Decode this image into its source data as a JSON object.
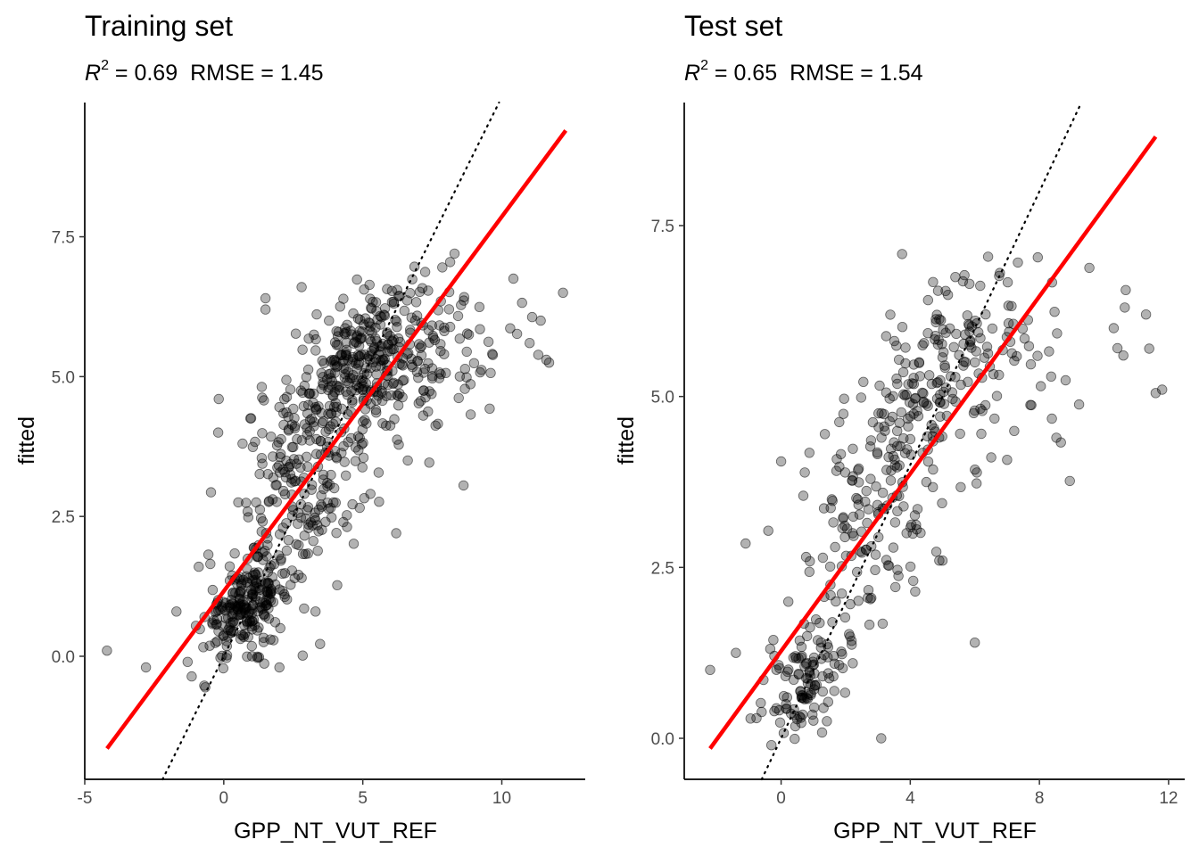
{
  "chart_data": [
    {
      "type": "scatter",
      "title": "Training set",
      "subtitle": {
        "r2_symbol": "R",
        "r2_exp": "2",
        "r2_value": " = 0.69",
        "rmse": "RMSE = 1.45"
      },
      "xlabel": "GPP_NT_VUT_REF",
      "ylabel": "fitted",
      "xlim": [
        -5,
        13
      ],
      "ylim": [
        -2.2,
        9.9
      ],
      "xticks": [
        -5,
        0,
        5,
        10
      ],
      "xtick_labels": [
        "-5",
        "0",
        "5",
        "10"
      ],
      "yticks": [
        0,
        2.5,
        5,
        7.5
      ],
      "ytick_labels": [
        "0.0",
        "2.5",
        "5.0",
        "7.5"
      ],
      "grid": false,
      "point_color": "#000000",
      "point_alpha": 0.3,
      "fit_line": {
        "color": "#ff0000",
        "x": [
          -4.2,
          12.3
        ],
        "y": [
          -1.65,
          9.4
        ]
      },
      "identity_line": {
        "style": "dotted",
        "color": "#000000"
      },
      "clusters": [
        {
          "cx": 0.8,
          "cy": 0.9,
          "sx": 0.75,
          "sy": 0.38,
          "n": 230
        },
        {
          "cx": 5.2,
          "cy": 5.4,
          "sx": 1.35,
          "sy": 0.55,
          "n": 260
        },
        {
          "cx": 2.8,
          "cy": 3.0,
          "sx": 1.3,
          "sy": 1.0,
          "n": 170
        },
        {
          "cx": 8.2,
          "cy": 5.3,
          "sx": 1.6,
          "sy": 0.7,
          "n": 80
        },
        {
          "cx": 4.0,
          "cy": 4.4,
          "sx": 1.4,
          "sy": 0.8,
          "n": 90
        }
      ],
      "points": [
        [
          -4.2,
          0.1
        ],
        [
          -2.8,
          -0.2
        ],
        [
          -1.7,
          0.8
        ],
        [
          -0.9,
          1.6
        ],
        [
          -1.3,
          -0.1
        ],
        [
          12.2,
          6.5
        ],
        [
          11.6,
          5.3
        ],
        [
          11.7,
          5.25
        ],
        [
          11.4,
          6.0
        ],
        [
          11.0,
          5.6
        ],
        [
          8.3,
          7.2
        ],
        [
          1.5,
          6.4
        ],
        [
          1.5,
          6.2
        ],
        [
          2.8,
          6.6
        ],
        [
          6.2,
          2.2
        ],
        [
          -0.2,
          4.0
        ],
        [
          2.0,
          -0.2
        ],
        [
          4.3,
          2.4
        ],
        [
          2.8,
          1.4
        ],
        [
          3.3,
          0.8
        ]
      ]
    },
    {
      "type": "scatter",
      "title": "Test set",
      "subtitle": {
        "r2_symbol": "R",
        "r2_exp": "2",
        "r2_value": " = 0.65",
        "rmse": "RMSE = 1.54"
      },
      "xlabel": "GPP_NT_VUT_REF",
      "ylabel": "fitted",
      "xlim": [
        -3,
        12.5
      ],
      "ylim": [
        -0.6,
        9.3
      ],
      "xticks": [
        0,
        4,
        8,
        12
      ],
      "xtick_labels": [
        "0",
        "4",
        "8",
        "12"
      ],
      "yticks": [
        0,
        2.5,
        5,
        7.5
      ],
      "ytick_labels": [
        "0.0",
        "2.5",
        "5.0",
        "7.5"
      ],
      "grid": false,
      "point_color": "#000000",
      "point_alpha": 0.3,
      "fit_line": {
        "color": "#ff0000",
        "x": [
          -2.2,
          11.6
        ],
        "y": [
          -0.15,
          8.8
        ]
      },
      "identity_line": {
        "style": "dotted",
        "color": "#000000"
      },
      "clusters": [
        {
          "cx": 0.8,
          "cy": 0.9,
          "sx": 0.6,
          "sy": 0.35,
          "n": 110
        },
        {
          "cx": 5.0,
          "cy": 5.5,
          "sx": 1.2,
          "sy": 0.6,
          "n": 140
        },
        {
          "cx": 2.6,
          "cy": 3.2,
          "sx": 1.1,
          "sy": 1.0,
          "n": 120
        },
        {
          "cx": 7.6,
          "cy": 5.2,
          "sx": 1.4,
          "sy": 0.7,
          "n": 45
        },
        {
          "cx": 3.8,
          "cy": 4.3,
          "sx": 1.1,
          "sy": 0.7,
          "n": 50
        }
      ],
      "points": [
        [
          -2.2,
          1.0
        ],
        [
          -1.4,
          1.25
        ],
        [
          -1.1,
          2.85
        ],
        [
          11.6,
          5.05
        ],
        [
          11.8,
          5.1
        ],
        [
          11.3,
          6.2
        ],
        [
          11.4,
          5.7
        ],
        [
          6.0,
          1.4
        ],
        [
          3.1,
          0.0
        ],
        [
          0.0,
          4.05
        ],
        [
          4.9,
          2.6
        ],
        [
          5.0,
          2.6
        ],
        [
          10.3,
          6.0
        ],
        [
          10.6,
          5.6
        ],
        [
          -0.3,
          -0.1
        ]
      ]
    }
  ]
}
